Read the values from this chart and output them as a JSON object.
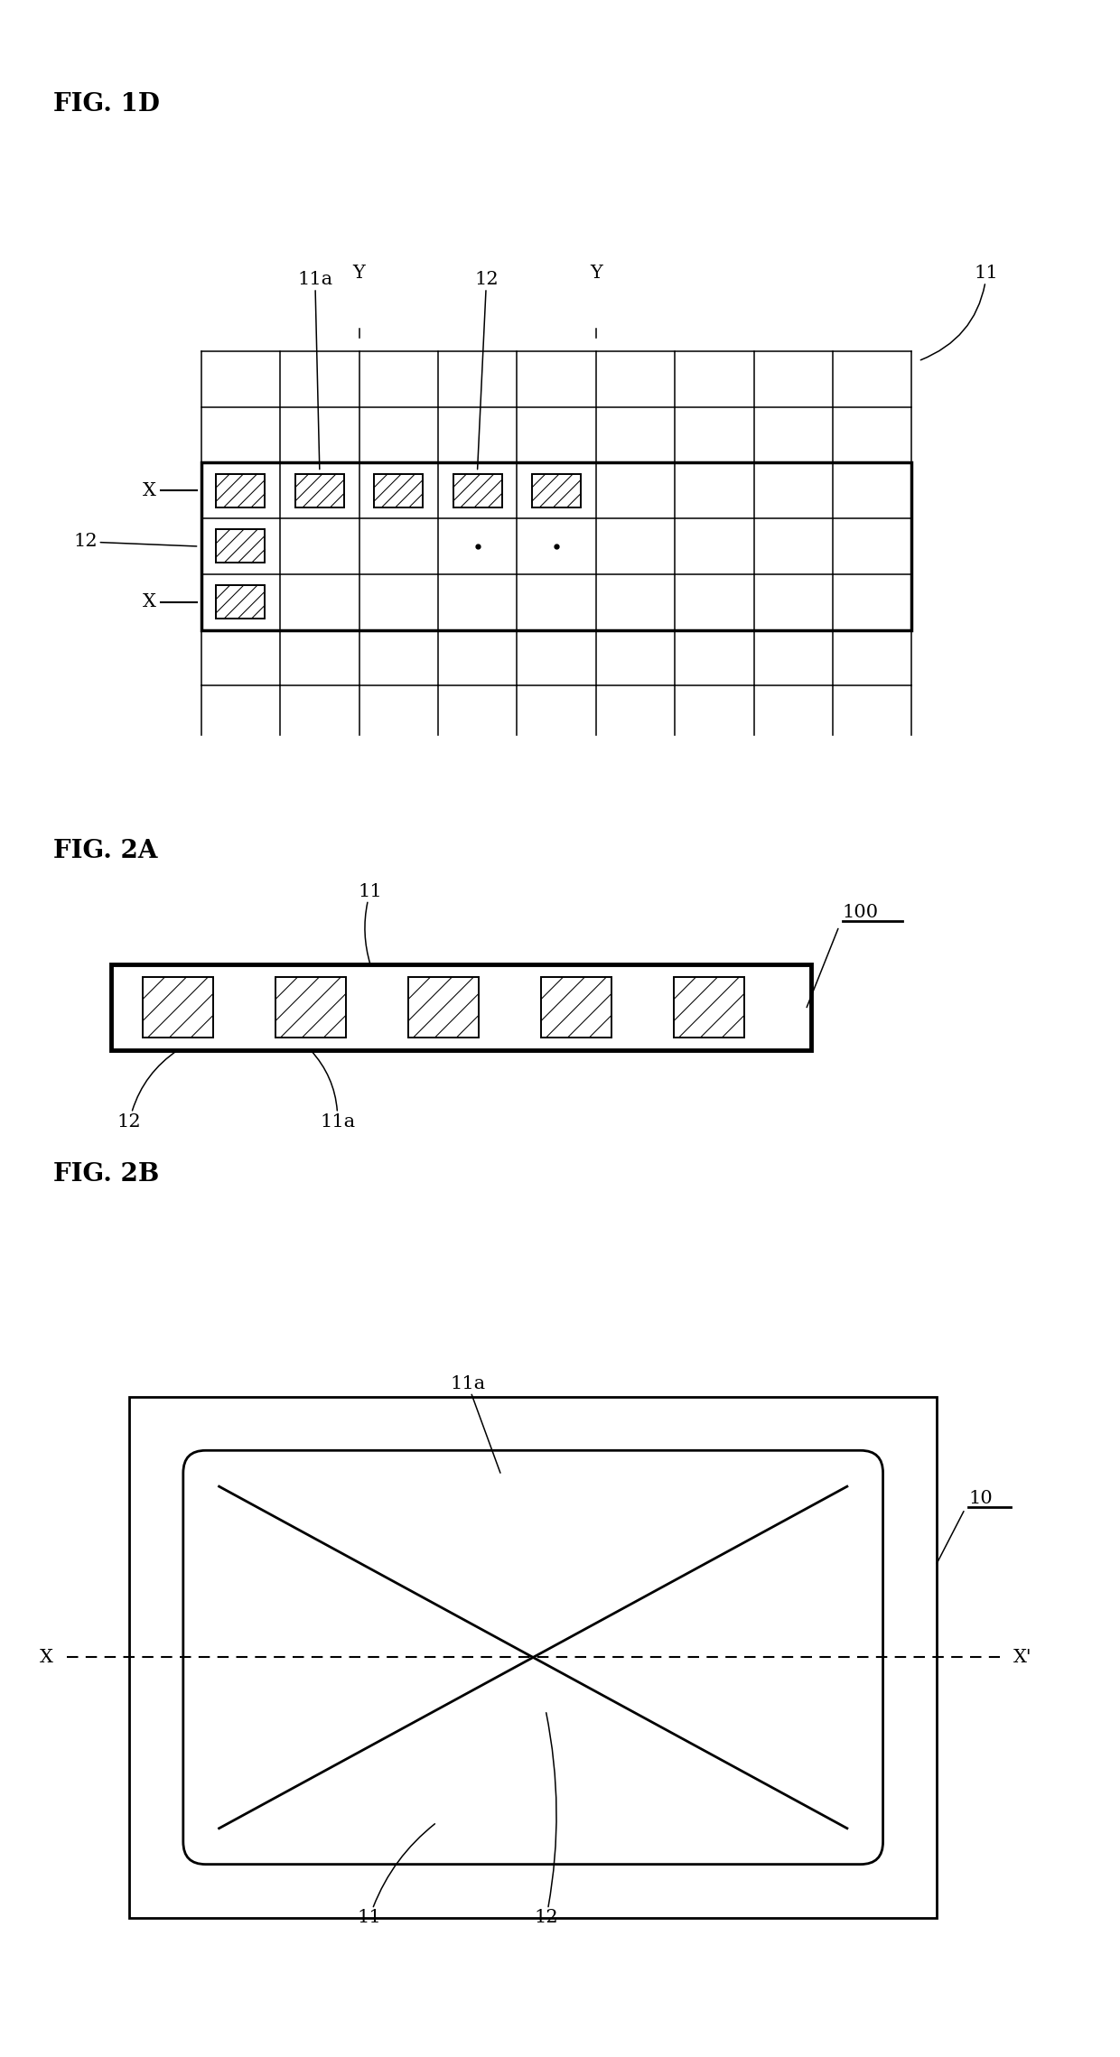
{
  "bg_color": "#ffffff",
  "fig_width": 12.4,
  "fig_height": 22.78,
  "fig1d_label": "FIG. 1D",
  "fig2a_label": "FIG. 2A",
  "fig2b_label": "FIG. 2B",
  "line_color": "#000000",
  "font_size_label": 20,
  "font_size_annot": 15
}
